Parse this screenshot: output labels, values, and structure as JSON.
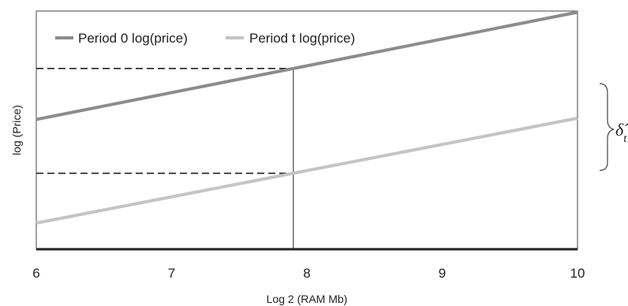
{
  "chart_data": {
    "type": "line",
    "xlabel": "Log 2 (RAM Mb)",
    "ylabel": "log (Price)",
    "xlim": [
      6,
      10
    ],
    "ylim": [
      0,
      10
    ],
    "x_ticks": [
      "6",
      "7",
      "8",
      "9",
      "10"
    ],
    "y_ticks": [],
    "grid": false,
    "legend_position": "top-left",
    "series": [
      {
        "name": "Period 0 log(price)",
        "color": "#8c8c8c",
        "x": [
          6,
          10
        ],
        "y": [
          5.45,
          9.95
        ]
      },
      {
        "name": "Period t log(price)",
        "color": "#c4c4c4",
        "x": [
          6,
          10
        ],
        "y": [
          1.1,
          5.5
        ]
      }
    ],
    "annotations": {
      "reference_x": 7.9,
      "delta_symbol": "δ̂",
      "delta_subscript": "t"
    }
  }
}
